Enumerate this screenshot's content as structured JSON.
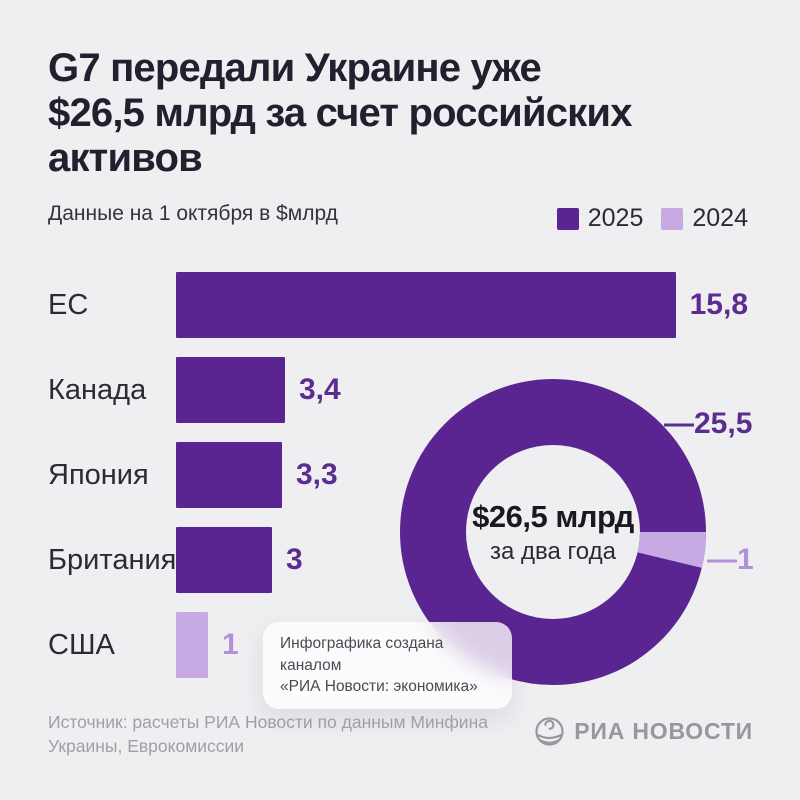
{
  "page": {
    "title": "G7 передали Украине уже\n$26,5 млрд за счет российских\nактивов",
    "subtitle": "Данные на 1 октября в $млрд"
  },
  "legend": [
    {
      "label": "2025",
      "color": "#5b2591"
    },
    {
      "label": "2024",
      "color": "#c7a9e3"
    }
  ],
  "chart_data": [
    {
      "type": "bar",
      "orientation": "horizontal",
      "title": "G7 передали Украине уже $26,5 млрд за счет российских активов",
      "subtitle": "Данные на 1 октября в $млрд",
      "unit": "$млрд",
      "categories": [
        "ЕС",
        "Канада",
        "Япония",
        "Британия",
        "США"
      ],
      "values": [
        15.8,
        3.4,
        3.3,
        3,
        1
      ],
      "value_labels": [
        "15,8",
        "3,4",
        "3,3",
        "3",
        "1"
      ],
      "years": [
        "2025",
        "2025",
        "2025",
        "2025",
        "2024"
      ],
      "xlim": [
        0,
        15.8
      ],
      "grid": false,
      "legend_position": "top-right"
    },
    {
      "type": "pie",
      "donut": true,
      "total": 26.5,
      "center_label": "$26,5 млрд",
      "center_sublabel": "за два года",
      "start_angle_deg_from_top": 90,
      "direction": "clockwise",
      "segments": [
        {
          "name": "2025",
          "value": 25.5,
          "label": "—25,5"
        },
        {
          "name": "2024",
          "value": 1,
          "label": "—1"
        }
      ]
    }
  ],
  "tooltip": {
    "text": "Инфографика создана каналом\n«РИА Новости: экономика»"
  },
  "footer": {
    "source": "Источник: расчеты РИА Новости по данным Минфина\nУкраины, Еврокомиссии",
    "logo_text": "РИА НОВОСТИ"
  },
  "colors": {
    "background": "#efeef0",
    "title_text": "#20202e",
    "body_text": "#2b2b38",
    "purple_dark": "#5b2591",
    "purple_dark_text": "#5c2d90",
    "purple_light": "#c7a9e3",
    "purple_light_text": "#b191d8",
    "source_text": "#9fa0a6",
    "logo_gray": "#97979c"
  }
}
